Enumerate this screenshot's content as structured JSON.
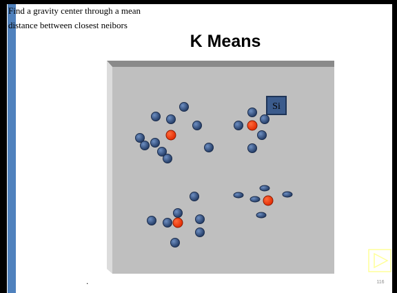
{
  "note_lines": [
    "Find a gravity center through a mean",
    "distance bettween closest neibors"
  ],
  "title": "K Means",
  "box_label": "Si",
  "footer_mark": ".",
  "page_number": "116"
}
